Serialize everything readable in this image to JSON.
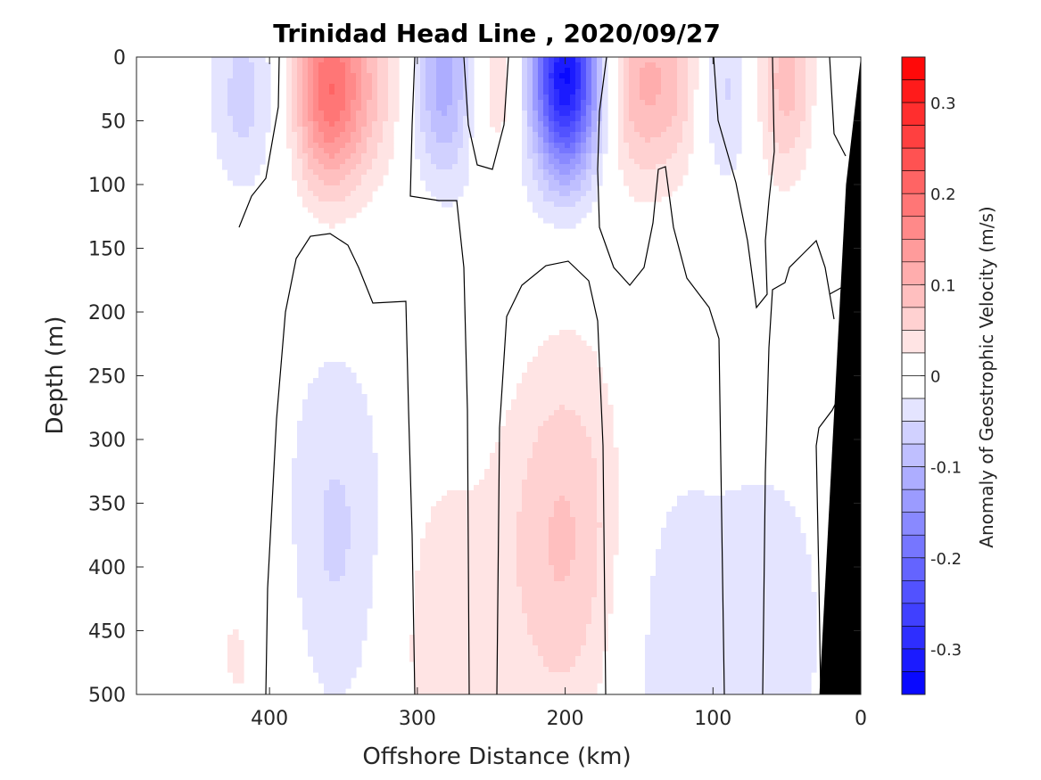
{
  "chart_data": {
    "type": "heatmap",
    "title": "Trinidad Head Line , 2020/09/27",
    "xlabel": "Offshore Distance (km)",
    "ylabel": "Depth (m)",
    "xlim": [
      490,
      0
    ],
    "ylim": [
      0,
      500
    ],
    "x_axis_reversed": true,
    "y_axis_reversed": true,
    "x_ticks": [
      400,
      300,
      200,
      100,
      0
    ],
    "y_ticks": [
      0,
      50,
      100,
      150,
      200,
      250,
      300,
      350,
      400,
      450,
      500
    ],
    "colorbar": {
      "label": "Anomaly of Geostrophic Velocity (m/s)",
      "range": [
        -0.35,
        0.35
      ],
      "level_step": 0.025,
      "ticks": [
        0.3,
        0.2,
        0.1,
        0,
        -0.1,
        -0.2,
        -0.3
      ],
      "negative_color": "#0000ff",
      "positive_color": "#ff0000",
      "zero_color": "#ffffff"
    },
    "bathymetry_color": "#000000",
    "contour_line_value": 0,
    "field_features": [
      {
        "x": 418,
        "depth": 30,
        "value": -0.06
      },
      {
        "x": 360,
        "depth": 25,
        "value": 0.19
      },
      {
        "x": 330,
        "depth": 20,
        "value": 0.06
      },
      {
        "x": 280,
        "depth": 20,
        "value": -0.12
      },
      {
        "x": 250,
        "depth": 30,
        "value": 0.06
      },
      {
        "x": 245,
        "depth": 130,
        "value": -0.03
      },
      {
        "x": 200,
        "depth": 15,
        "value": -0.33
      },
      {
        "x": 150,
        "depth": 20,
        "value": 0.09
      },
      {
        "x": 120,
        "depth": 20,
        "value": 0.07
      },
      {
        "x": 95,
        "depth": 25,
        "value": -0.07
      },
      {
        "x": 50,
        "depth": 20,
        "value": 0.09
      },
      {
        "x": 18,
        "depth": 45,
        "value": -0.03
      },
      {
        "x": 355,
        "depth": 380,
        "value": -0.06
      },
      {
        "x": 200,
        "depth": 380,
        "value": 0.08
      },
      {
        "x": 290,
        "depth": 440,
        "value": 0.04
      },
      {
        "x": 130,
        "depth": 450,
        "value": -0.04
      },
      {
        "x": 60,
        "depth": 450,
        "value": -0.04
      },
      {
        "x": 415,
        "depth": 460,
        "value": 0.03
      }
    ],
    "bathymetry": [
      [
        0,
        0
      ],
      [
        5,
        50
      ],
      [
        10,
        100
      ],
      [
        28,
        500
      ]
    ]
  }
}
